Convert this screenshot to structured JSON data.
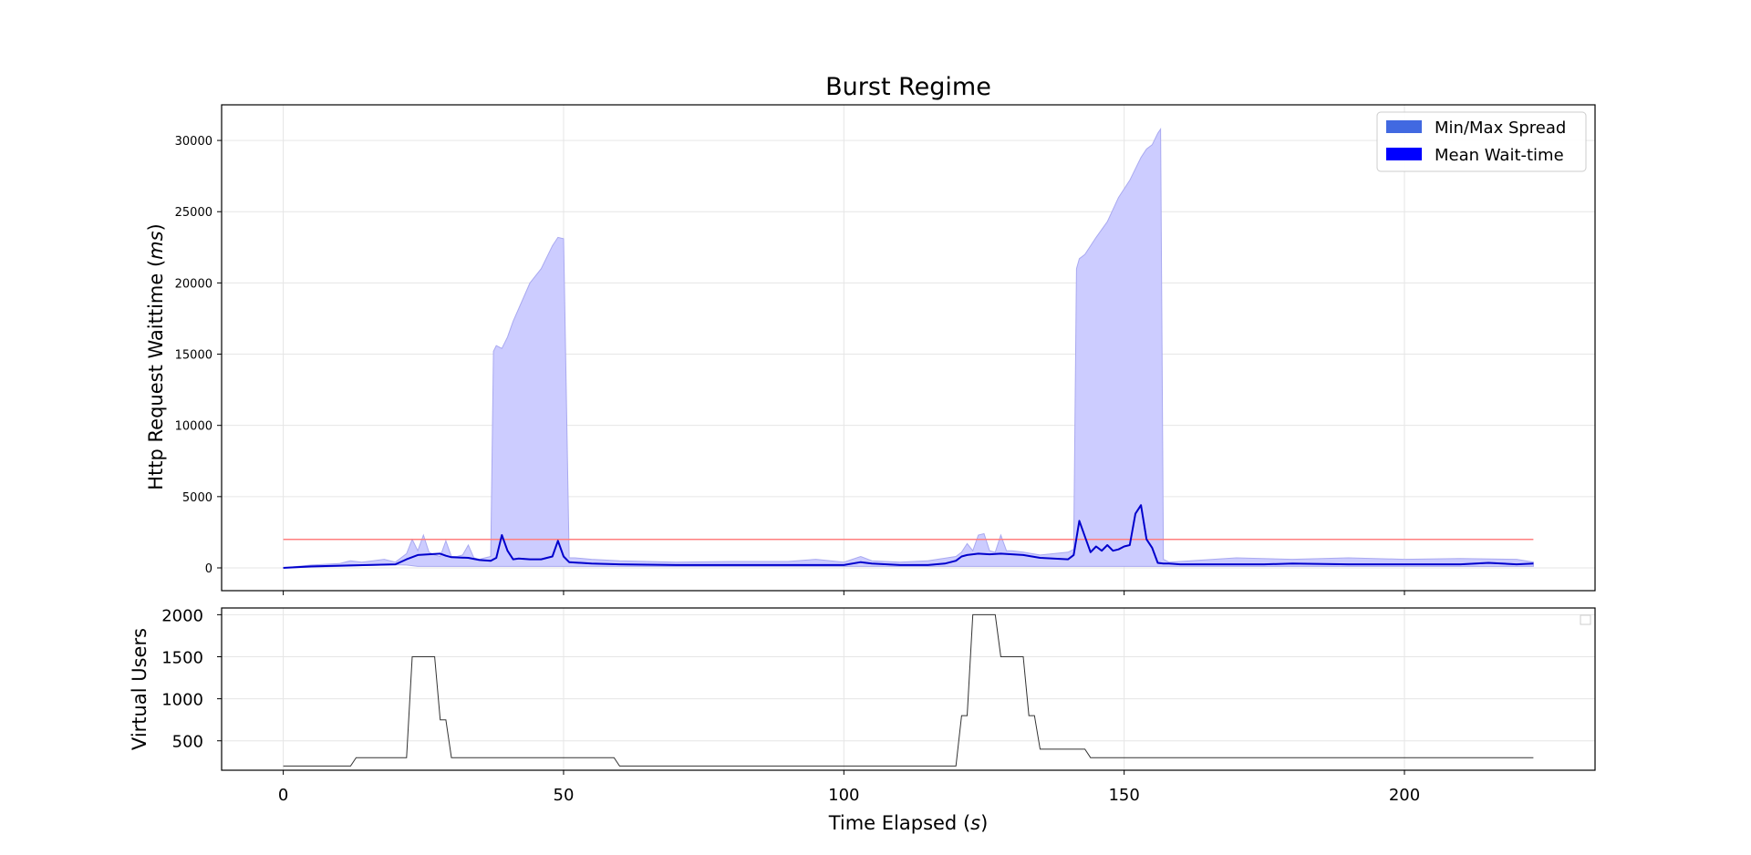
{
  "chart_data": [
    {
      "type": "area",
      "title": "Burst Regime",
      "xlabel": "",
      "ylabel": "Http Request Waittime (ms)",
      "xlim": [
        -11,
        234
      ],
      "ylim": [
        -1600,
        32500
      ],
      "x_ticks": [
        0,
        50,
        100,
        150,
        200
      ],
      "y_ticks": [
        0,
        5000,
        10000,
        15000,
        20000,
        25000,
        30000
      ],
      "y_tick_labels": [
        "0",
        "5000",
        "10000",
        "15000",
        "20000",
        "25000",
        "30000"
      ],
      "grid": true,
      "legend": {
        "placement": "top-right",
        "entries": [
          {
            "label": "Min/Max Spread",
            "color": "#4169e1"
          },
          {
            "label": "Mean Wait-time",
            "color": "#0000ff"
          }
        ]
      },
      "threshold": {
        "y": 2000,
        "x_start": 0,
        "x_end": 223,
        "color": "#ff7f7f"
      },
      "colors": {
        "spread_fill": "#ccccff",
        "spread_edge": "#a9a9f0",
        "mean_line": "#0000cc"
      },
      "series": [
        {
          "name": "Min/Max Spread",
          "kind": "band",
          "x": [
            0,
            5,
            10,
            12,
            14,
            16,
            18,
            20,
            22,
            23,
            24,
            25,
            26,
            27,
            28,
            29,
            30,
            31,
            32,
            33,
            34,
            35,
            36,
            37,
            37.5,
            38,
            39,
            40,
            41,
            42,
            44,
            46,
            48,
            49,
            50,
            51,
            52,
            55,
            60,
            70,
            80,
            90,
            95,
            100,
            103,
            105,
            110,
            115,
            120,
            121,
            122,
            123,
            124,
            125,
            126,
            127,
            128,
            129,
            130,
            132,
            135,
            140,
            141,
            141.5,
            142,
            143,
            145,
            147,
            149,
            151,
            153,
            154,
            155,
            156,
            156.5,
            157,
            158,
            160,
            170,
            180,
            190,
            200,
            210,
            220,
            223
          ],
          "upper": [
            0,
            200,
            300,
            500,
            400,
            500,
            600,
            400,
            1000,
            2000,
            1200,
            2300,
            1100,
            900,
            800,
            1900,
            800,
            800,
            900,
            1600,
            700,
            600,
            700,
            800,
            15200,
            15600,
            15400,
            16200,
            17300,
            18200,
            20000,
            21000,
            22600,
            23200,
            23100,
            700,
            700,
            600,
            500,
            400,
            450,
            450,
            600,
            400,
            800,
            500,
            400,
            500,
            800,
            1100,
            1700,
            1200,
            2300,
            2400,
            1200,
            1100,
            2300,
            1200,
            1200,
            1100,
            900,
            1100,
            1300,
            21000,
            21700,
            22000,
            23200,
            24300,
            26000,
            27200,
            28800,
            29400,
            29700,
            30500,
            30800,
            600,
            400,
            450,
            700,
            600,
            700,
            600,
            650,
            600,
            400
          ],
          "lower": [
            0,
            50,
            100,
            120,
            150,
            180,
            200,
            220,
            200,
            150,
            100,
            100,
            100,
            100,
            100,
            100,
            100,
            100,
            100,
            100,
            100,
            100,
            100,
            100,
            100,
            100,
            100,
            100,
            100,
            100,
            100,
            100,
            100,
            100,
            100,
            100,
            100,
            100,
            100,
            100,
            100,
            100,
            100,
            100,
            100,
            100,
            100,
            100,
            100,
            100,
            100,
            100,
            100,
            100,
            100,
            100,
            100,
            100,
            100,
            100,
            100,
            100,
            100,
            100,
            100,
            100,
            100,
            100,
            100,
            100,
            100,
            100,
            100,
            100,
            100,
            100,
            100,
            100,
            100,
            100,
            100,
            100,
            100,
            100,
            100
          ]
        },
        {
          "name": "Mean Wait-time",
          "kind": "line",
          "x": [
            0,
            5,
            10,
            15,
            20,
            22,
            24,
            26,
            28,
            29,
            30,
            33,
            35,
            37,
            38,
            39,
            40,
            41,
            42,
            44,
            46,
            48,
            49,
            50,
            51,
            55,
            60,
            70,
            80,
            90,
            100,
            103,
            105,
            110,
            115,
            118,
            120,
            121,
            122,
            124,
            126,
            128,
            130,
            132,
            135,
            140,
            141,
            142,
            143,
            144,
            145,
            146,
            147,
            148,
            149,
            150,
            151,
            152,
            153,
            154,
            155,
            156,
            157,
            158,
            160,
            170,
            175,
            180,
            190,
            200,
            210,
            215,
            220,
            223
          ],
          "y": [
            0,
            100,
            150,
            200,
            250,
            600,
            900,
            950,
            1000,
            850,
            750,
            700,
            550,
            500,
            700,
            2300,
            1200,
            600,
            650,
            600,
            600,
            800,
            1900,
            800,
            400,
            300,
            250,
            200,
            200,
            200,
            200,
            400,
            300,
            200,
            200,
            300,
            500,
            800,
            900,
            1000,
            950,
            1000,
            950,
            900,
            700,
            600,
            900,
            3300,
            2200,
            1100,
            1500,
            1200,
            1600,
            1200,
            1300,
            1500,
            1600,
            3800,
            4400,
            2000,
            1400,
            350,
            300,
            300,
            250,
            250,
            250,
            300,
            250,
            250,
            250,
            350,
            250,
            300
          ]
        }
      ]
    },
    {
      "type": "line",
      "title": "",
      "xlabel": "Time Elapsed (s)",
      "ylabel": "Virtual Users",
      "xlim": [
        -11,
        234
      ],
      "ylim": [
        150,
        2080
      ],
      "x_ticks": [
        0,
        50,
        100,
        150,
        200
      ],
      "x_tick_labels": [
        "0",
        "50",
        "100",
        "150",
        "200"
      ],
      "y_ticks": [
        500,
        1000,
        1500,
        2000
      ],
      "y_tick_labels": [
        "500",
        "1000",
        "1500",
        "2000"
      ],
      "grid": true,
      "legend": {
        "placement": "top-right",
        "entries": []
      },
      "colors": {
        "line": "#333333"
      },
      "series": [
        {
          "x": [
            0,
            12,
            13,
            22,
            23,
            27,
            28,
            29,
            30,
            59,
            60,
            120,
            121,
            122,
            123,
            127,
            128,
            132,
            133,
            134,
            135,
            143,
            144,
            223
          ],
          "y": [
            200,
            200,
            300,
            300,
            1500,
            1500,
            750,
            750,
            300,
            300,
            200,
            200,
            800,
            800,
            2000,
            2000,
            1500,
            1500,
            800,
            800,
            400,
            400,
            300,
            300
          ]
        }
      ]
    }
  ]
}
